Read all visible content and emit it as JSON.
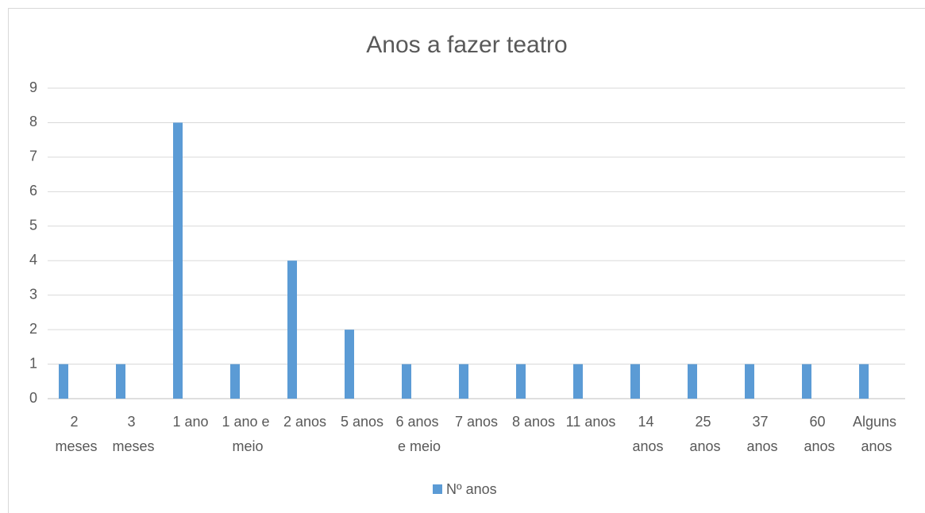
{
  "chart_data": {
    "type": "bar",
    "title": "Anos a fazer teatro",
    "categories": [
      "2 meses",
      "3 meses",
      "1 ano",
      "1 ano e meio",
      "2 anos",
      "5 anos",
      "6 anos e meio",
      "7 anos",
      "8 anos",
      "11 anos",
      "14 anos",
      "25 anos",
      "37 anos",
      "60 anos",
      "Alguns anos"
    ],
    "series": [
      {
        "name": "Nº anos",
        "color": "#5b9bd5",
        "values": [
          1,
          1,
          8,
          1,
          4,
          2,
          1,
          1,
          1,
          1,
          1,
          1,
          1,
          1,
          1
        ]
      }
    ],
    "ylim": [
      0,
      9
    ],
    "yticks": [
      0,
      1,
      2,
      3,
      4,
      5,
      6,
      7,
      8,
      9
    ],
    "grid": true,
    "legend": "bottom"
  }
}
